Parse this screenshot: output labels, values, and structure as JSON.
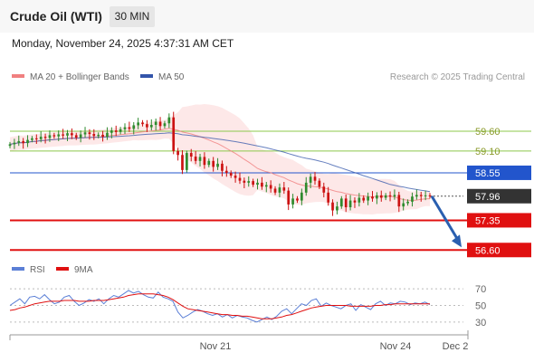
{
  "header": {
    "title": "Crude Oil (WTI)",
    "timeframe": "30 MIN"
  },
  "datetime": "Monday, November 24, 2025 4:37:31 AM CET",
  "legend": {
    "ma20": "MA 20 + Bollinger Bands",
    "ma50": "MA 50",
    "rsi": "RSI",
    "rsi_ma": "9MA"
  },
  "credit": "Research © 2025 Trading Central",
  "colors": {
    "ma20": "#f08080",
    "ma50": "#3355aa",
    "bands": "#fde4e4",
    "green_level": "#8cc84b",
    "blue_level": "#2255cc",
    "red_level": "#e01010",
    "current": "#333333",
    "up_candle": "#2e8b2e",
    "down_candle": "#cc1111",
    "arrow": "#2a5fb0",
    "rsi": "#5b7fd6",
    "rsi_ma": "#e01010"
  },
  "chart_data": {
    "type": "line",
    "instrument": "Crude Oil (WTI)",
    "interval": "30 MIN",
    "x_tick_labels": [
      "Nov 21",
      "Nov 24",
      "Dec 2"
    ],
    "levels": [
      {
        "label": "59.60",
        "value": 59.6,
        "kind": "resistance"
      },
      {
        "label": "59.10",
        "value": 59.1,
        "kind": "resistance"
      },
      {
        "label": "58.55",
        "value": 58.55,
        "kind": "pivot"
      },
      {
        "label": "57.96",
        "value": 57.96,
        "kind": "current"
      },
      {
        "label": "57.35",
        "value": 57.35,
        "kind": "support"
      },
      {
        "label": "56.60",
        "value": 56.6,
        "kind": "support"
      }
    ],
    "price_range": [
      56.4,
      60.4
    ],
    "close_series": [
      {
        "name": "Close",
        "values": [
          59.27,
          59.31,
          59.35,
          59.3,
          59.38,
          59.42,
          59.4,
          59.46,
          59.43,
          59.5,
          59.47,
          59.52,
          59.49,
          59.55,
          59.5,
          59.44,
          59.52,
          59.57,
          59.53,
          59.48,
          59.51,
          59.46,
          59.56,
          59.62,
          59.58,
          59.65,
          59.7,
          59.66,
          59.75,
          59.82,
          59.78,
          59.7,
          59.76,
          59.84,
          59.73,
          59.8,
          59.95,
          59.1,
          59.0,
          58.62,
          59.05,
          58.96,
          58.85,
          58.95,
          58.75,
          58.85,
          58.7,
          58.78,
          58.6,
          58.55,
          58.48,
          58.42,
          58.35,
          58.3,
          58.34,
          58.25,
          58.3,
          58.2,
          58.24,
          58.15,
          58.05,
          58.18,
          58.1,
          57.75,
          57.9,
          57.85,
          58.05,
          58.3,
          58.45,
          58.35,
          58.2,
          58.05,
          57.8,
          57.6,
          57.7,
          57.9,
          57.68,
          57.85,
          57.8,
          57.92,
          57.85,
          57.95,
          57.9,
          57.98,
          57.92,
          57.98,
          57.95,
          57.99,
          57.7,
          57.78,
          57.82,
          57.95,
          57.99,
          57.96,
          57.98,
          57.96
        ]
      }
    ],
    "rsi": {
      "ylabels": [
        "70",
        "50",
        "30"
      ],
      "range": [
        20,
        80
      ],
      "series": [
        {
          "name": "RSI",
          "values": [
            50,
            54,
            58,
            52,
            60,
            61,
            58,
            63,
            57,
            52,
            54,
            60,
            62,
            55,
            50,
            53,
            57,
            55,
            58,
            52,
            58,
            62,
            60,
            64,
            68,
            65,
            67,
            63,
            60,
            59,
            66,
            60,
            58,
            55,
            42,
            35,
            38,
            42,
            45,
            43,
            40,
            38,
            40,
            36,
            39,
            35,
            38,
            36,
            35,
            32,
            30,
            33,
            36,
            33,
            37,
            43,
            46,
            40,
            46,
            52,
            50,
            56,
            58,
            49,
            53,
            50,
            48,
            46,
            50,
            52,
            44,
            51,
            48,
            45,
            52,
            55,
            50,
            53,
            52,
            55,
            54,
            51,
            53,
            52,
            54,
            51
          ]
        },
        {
          "name": "9MA",
          "values": [
            44,
            45,
            47,
            48,
            50,
            52,
            53,
            54,
            55,
            55,
            55,
            56,
            56,
            56,
            55,
            55,
            55,
            56,
            56,
            56,
            57,
            58,
            59,
            60,
            62,
            63,
            64,
            64,
            64,
            64,
            63,
            62,
            60,
            57,
            53,
            49,
            46,
            45,
            44,
            43,
            42,
            41,
            40,
            39,
            39,
            38,
            38,
            37,
            37,
            36,
            35,
            34,
            34,
            34,
            35,
            36,
            38,
            39,
            41,
            43,
            45,
            47,
            48,
            49,
            50,
            50,
            50,
            50,
            50,
            49,
            49,
            49,
            49,
            49,
            50,
            50,
            51,
            51,
            52,
            52,
            52,
            52,
            52,
            52,
            52,
            52
          ]
        }
      ]
    }
  }
}
